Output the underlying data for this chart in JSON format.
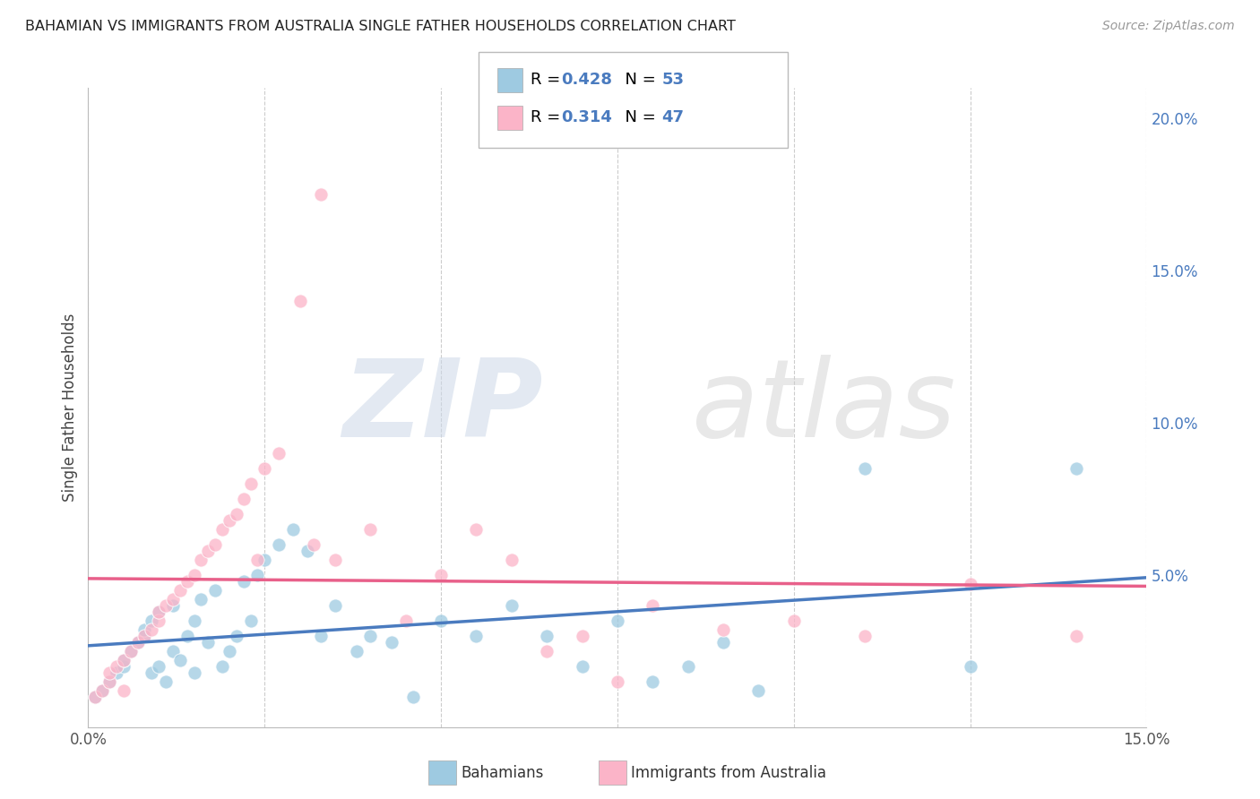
{
  "title": "BAHAMIAN VS IMMIGRANTS FROM AUSTRALIA SINGLE FATHER HOUSEHOLDS CORRELATION CHART",
  "source": "Source: ZipAtlas.com",
  "ylabel": "Single Father Households",
  "xlim": [
    0.0,
    0.15
  ],
  "ylim": [
    0.0,
    0.21
  ],
  "blue_color": "#9ecae1",
  "pink_color": "#fbb4c8",
  "blue_line_color": "#4a7bbf",
  "pink_line_color": "#e8608a",
  "legend_blue_R": "0.428",
  "legend_blue_N": "53",
  "legend_pink_R": "0.314",
  "legend_pink_N": "47",
  "right_tick_color": "#4a7bbf",
  "grid_color": "#cccccc",
  "title_color": "#222222",
  "source_color": "#999999",
  "ylabel_color": "#444444",
  "blue_scatter_x": [
    0.001,
    0.002,
    0.003,
    0.004,
    0.005,
    0.005,
    0.006,
    0.007,
    0.008,
    0.008,
    0.009,
    0.009,
    0.01,
    0.01,
    0.011,
    0.012,
    0.012,
    0.013,
    0.014,
    0.015,
    0.015,
    0.016,
    0.017,
    0.018,
    0.019,
    0.02,
    0.021,
    0.022,
    0.023,
    0.024,
    0.025,
    0.027,
    0.029,
    0.031,
    0.033,
    0.035,
    0.038,
    0.04,
    0.043,
    0.046,
    0.05,
    0.055,
    0.06,
    0.065,
    0.07,
    0.075,
    0.08,
    0.085,
    0.09,
    0.095,
    0.11,
    0.125,
    0.14
  ],
  "blue_scatter_y": [
    0.01,
    0.012,
    0.015,
    0.018,
    0.02,
    0.022,
    0.025,
    0.028,
    0.03,
    0.032,
    0.018,
    0.035,
    0.02,
    0.038,
    0.015,
    0.025,
    0.04,
    0.022,
    0.03,
    0.018,
    0.035,
    0.042,
    0.028,
    0.045,
    0.02,
    0.025,
    0.03,
    0.048,
    0.035,
    0.05,
    0.055,
    0.06,
    0.065,
    0.058,
    0.03,
    0.04,
    0.025,
    0.03,
    0.028,
    0.01,
    0.035,
    0.03,
    0.04,
    0.03,
    0.02,
    0.035,
    0.015,
    0.02,
    0.028,
    0.012,
    0.085,
    0.02,
    0.085
  ],
  "pink_scatter_x": [
    0.001,
    0.002,
    0.003,
    0.003,
    0.004,
    0.005,
    0.005,
    0.006,
    0.007,
    0.008,
    0.009,
    0.01,
    0.01,
    0.011,
    0.012,
    0.013,
    0.014,
    0.015,
    0.016,
    0.017,
    0.018,
    0.019,
    0.02,
    0.021,
    0.022,
    0.023,
    0.024,
    0.025,
    0.027,
    0.03,
    0.032,
    0.033,
    0.035,
    0.04,
    0.045,
    0.05,
    0.055,
    0.06,
    0.065,
    0.07,
    0.075,
    0.08,
    0.09,
    0.1,
    0.11,
    0.125,
    0.14
  ],
  "pink_scatter_y": [
    0.01,
    0.012,
    0.015,
    0.018,
    0.02,
    0.022,
    0.012,
    0.025,
    0.028,
    0.03,
    0.032,
    0.035,
    0.038,
    0.04,
    0.042,
    0.045,
    0.048,
    0.05,
    0.055,
    0.058,
    0.06,
    0.065,
    0.068,
    0.07,
    0.075,
    0.08,
    0.055,
    0.085,
    0.09,
    0.14,
    0.06,
    0.175,
    0.055,
    0.065,
    0.035,
    0.05,
    0.065,
    0.055,
    0.025,
    0.03,
    0.015,
    0.04,
    0.032,
    0.035,
    0.03,
    0.047,
    0.03
  ]
}
